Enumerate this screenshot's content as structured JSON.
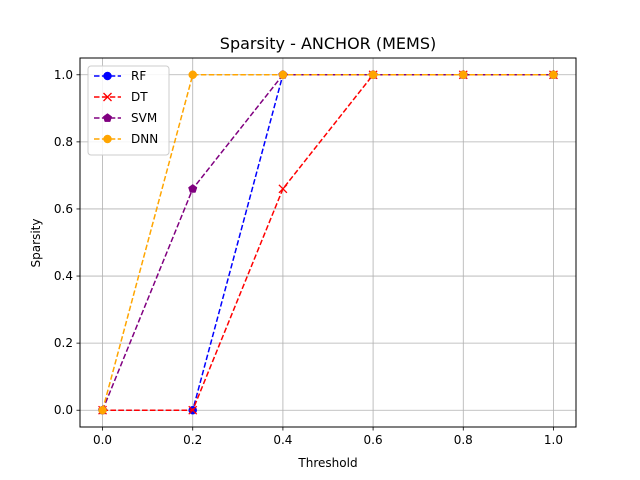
{
  "chart_data": {
    "type": "line",
    "title": "Sparsity - ANCHOR (MEMS)",
    "xlabel": "Threshold",
    "ylabel": "Sparsity",
    "x": [
      0.0,
      0.2,
      0.4,
      0.6,
      0.8,
      1.0
    ],
    "xlim": [
      -0.05,
      1.05
    ],
    "ylim": [
      -0.05,
      1.05
    ],
    "xticks": [
      "0.0",
      "0.2",
      "0.4",
      "0.6",
      "0.8",
      "1.0"
    ],
    "yticks": [
      "0.0",
      "0.2",
      "0.4",
      "0.6",
      "0.8",
      "1.0"
    ],
    "grid": true,
    "legend_position": "top-left",
    "series": [
      {
        "name": "RF",
        "color": "#0000ff",
        "marker": "circle",
        "values": [
          0.0,
          0.0,
          1.0,
          1.0,
          1.0,
          1.0
        ]
      },
      {
        "name": "DT",
        "color": "#ff0000",
        "marker": "x",
        "values": [
          0.0,
          0.0,
          0.66,
          1.0,
          1.0,
          1.0
        ]
      },
      {
        "name": "SVM",
        "color": "#800080",
        "marker": "pentagon",
        "values": [
          0.0,
          0.66,
          1.0,
          1.0,
          1.0,
          1.0
        ]
      },
      {
        "name": "DNN",
        "color": "#ffa500",
        "marker": "circle",
        "values": [
          0.0,
          1.0,
          1.0,
          1.0,
          1.0,
          1.0
        ]
      }
    ]
  }
}
